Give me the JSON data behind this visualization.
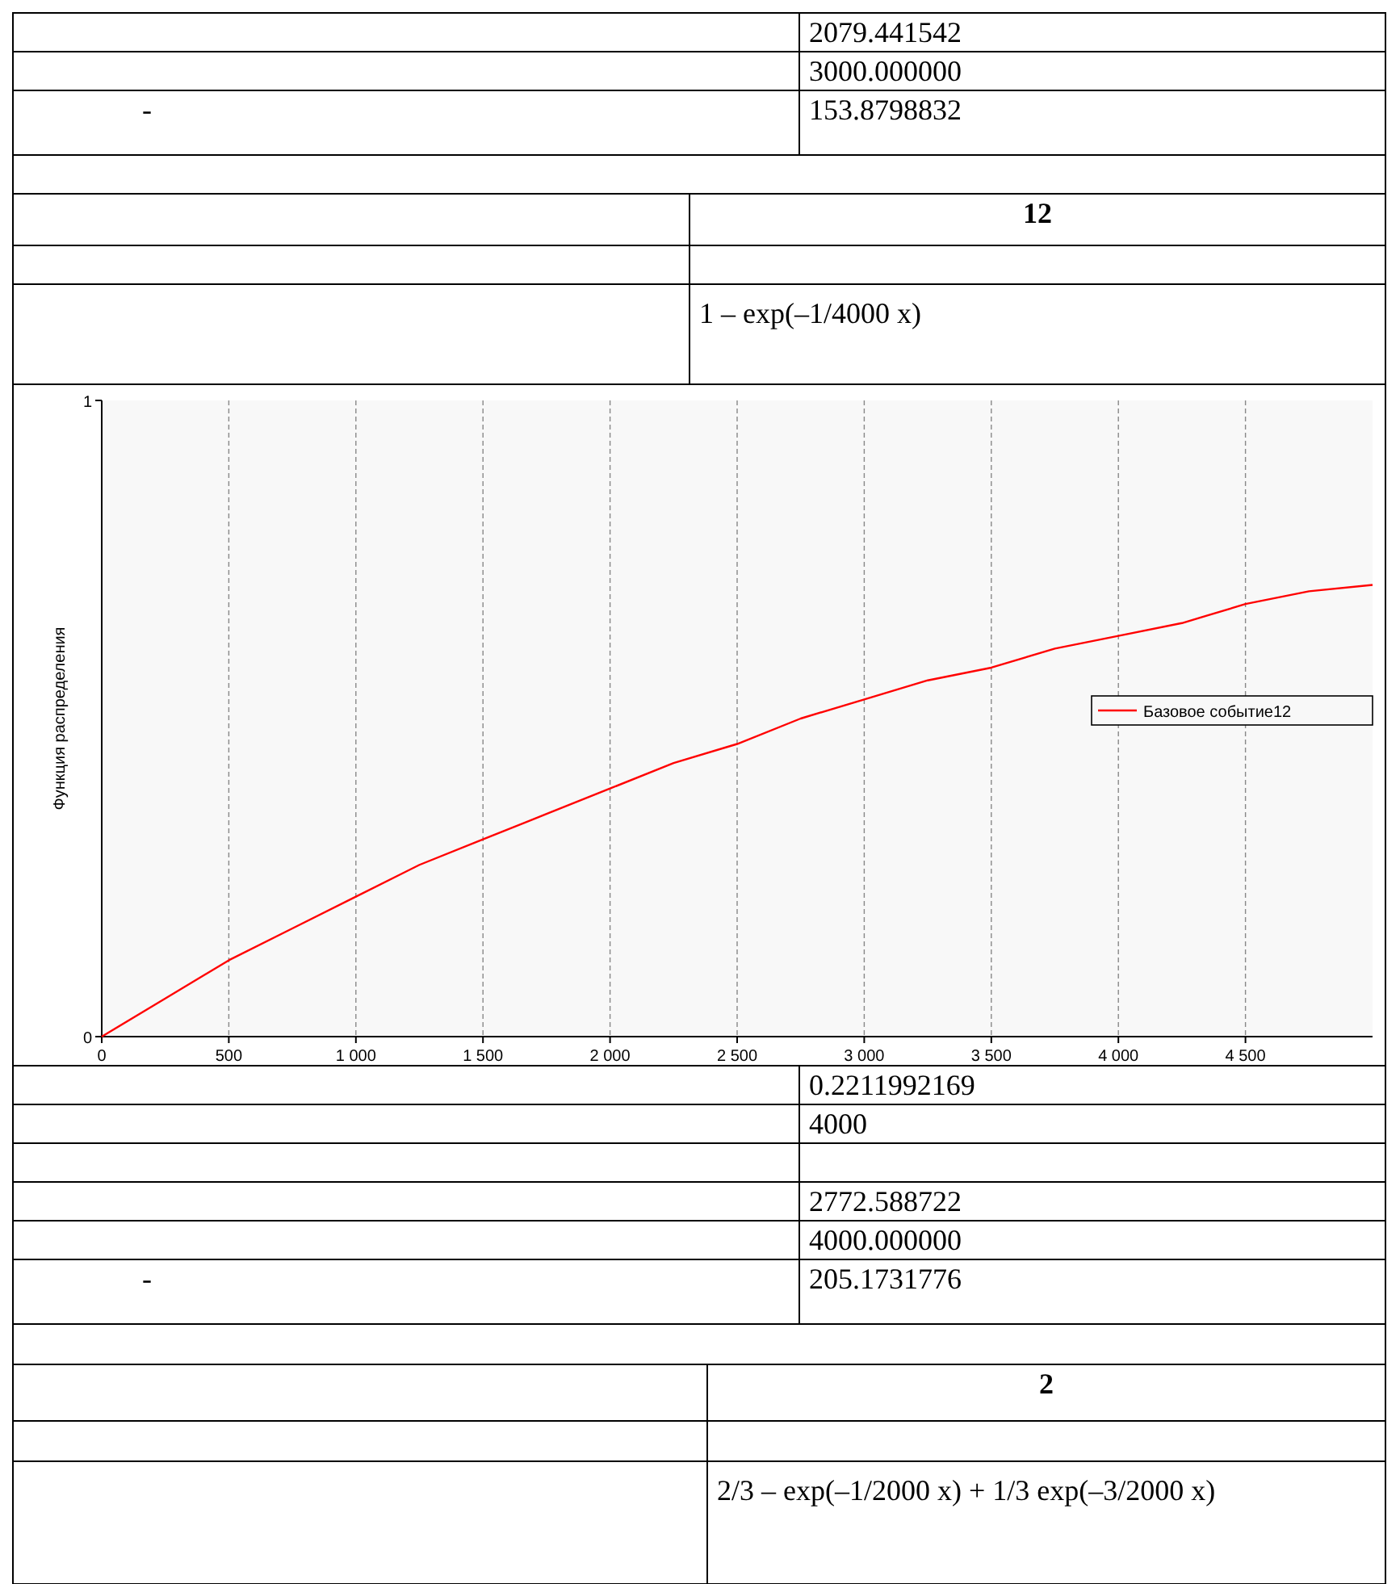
{
  "chart_data": [
    {
      "type": "other",
      "annotations": [
        "2079.441542",
        "3000.000000",
        "-",
        "153.8798832",
        "12",
        "1 – exp(–1/4000 x)"
      ]
    },
    {
      "type": "line",
      "ylabel": "Функция распределения",
      "x": [
        0,
        250,
        500,
        750,
        1000,
        1250,
        1500,
        1750,
        2000,
        2250,
        2500,
        2750,
        3000,
        3250,
        3500,
        3750,
        4000,
        4250,
        4500,
        4750,
        5000
      ],
      "series": [
        {
          "name": "Базовое событие12",
          "color": "#ff0000",
          "values": [
            0,
            0.06,
            0.12,
            0.17,
            0.22,
            0.27,
            0.31,
            0.35,
            0.39,
            0.43,
            0.46,
            0.5,
            0.53,
            0.56,
            0.58,
            0.61,
            0.63,
            0.65,
            0.68,
            0.7,
            0.71
          ]
        }
      ],
      "xlim": [
        0,
        5000
      ],
      "ylim": [
        0,
        1
      ],
      "xticks": [
        0,
        500,
        {
          "value": 1000,
          "label": "1 000"
        },
        {
          "value": 1500,
          "label": "1 500"
        },
        {
          "value": 2000,
          "label": "2 000"
        },
        {
          "value": 2500,
          "label": "2 500"
        },
        {
          "value": 3000,
          "label": "3 000"
        },
        {
          "value": 3500,
          "label": "3 500"
        },
        {
          "value": 4000,
          "label": "4 000"
        },
        {
          "value": 4500,
          "label": "4 500"
        }
      ],
      "yticks": [
        0,
        1
      ],
      "grid": "x",
      "legend": "right",
      "marker": "none",
      "line_style": "solid"
    },
    {
      "type": "other",
      "annotations": [
        "0.2211992169",
        "4000",
        "2772.588722",
        "4000.000000",
        "-",
        "205.1731776",
        "2",
        "2/3 – exp(–1/2000 x) + 1/3 exp(–3/2000 x)"
      ]
    }
  ]
}
